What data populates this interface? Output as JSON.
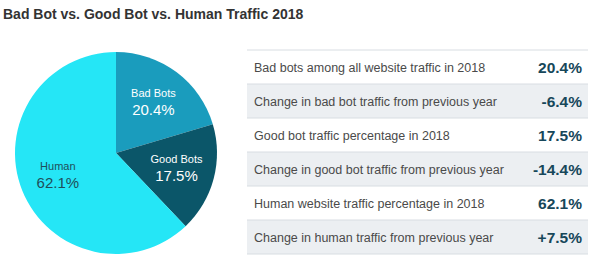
{
  "chart_data": {
    "type": "pie",
    "title": "Bad Bot vs. Good Bot vs. Human Traffic 2018",
    "categories": [
      "Bad Bots",
      "Good Bots",
      "Human"
    ],
    "values": [
      20.4,
      17.5,
      62.1
    ],
    "value_labels": [
      "20.4%",
      "17.5%",
      "62.1%"
    ],
    "colors": [
      "#1a9cbd",
      "#0b5669",
      "#25e6f6"
    ],
    "data_labels": true
  },
  "table": {
    "rows": [
      [
        "Bad bots among all website traffic in 2018",
        "20.4%"
      ],
      [
        "Change in bad bot traffic from previous year",
        "-6.4%"
      ],
      [
        "Good bot traffic percentage in 2018",
        "17.5%"
      ],
      [
        "Change in good bot traffic from previous year",
        "-14.4%"
      ],
      [
        "Human website traffic percentage in 2018",
        "62.1%"
      ],
      [
        "Change in human traffic from previous year",
        "+7.5%"
      ]
    ]
  }
}
